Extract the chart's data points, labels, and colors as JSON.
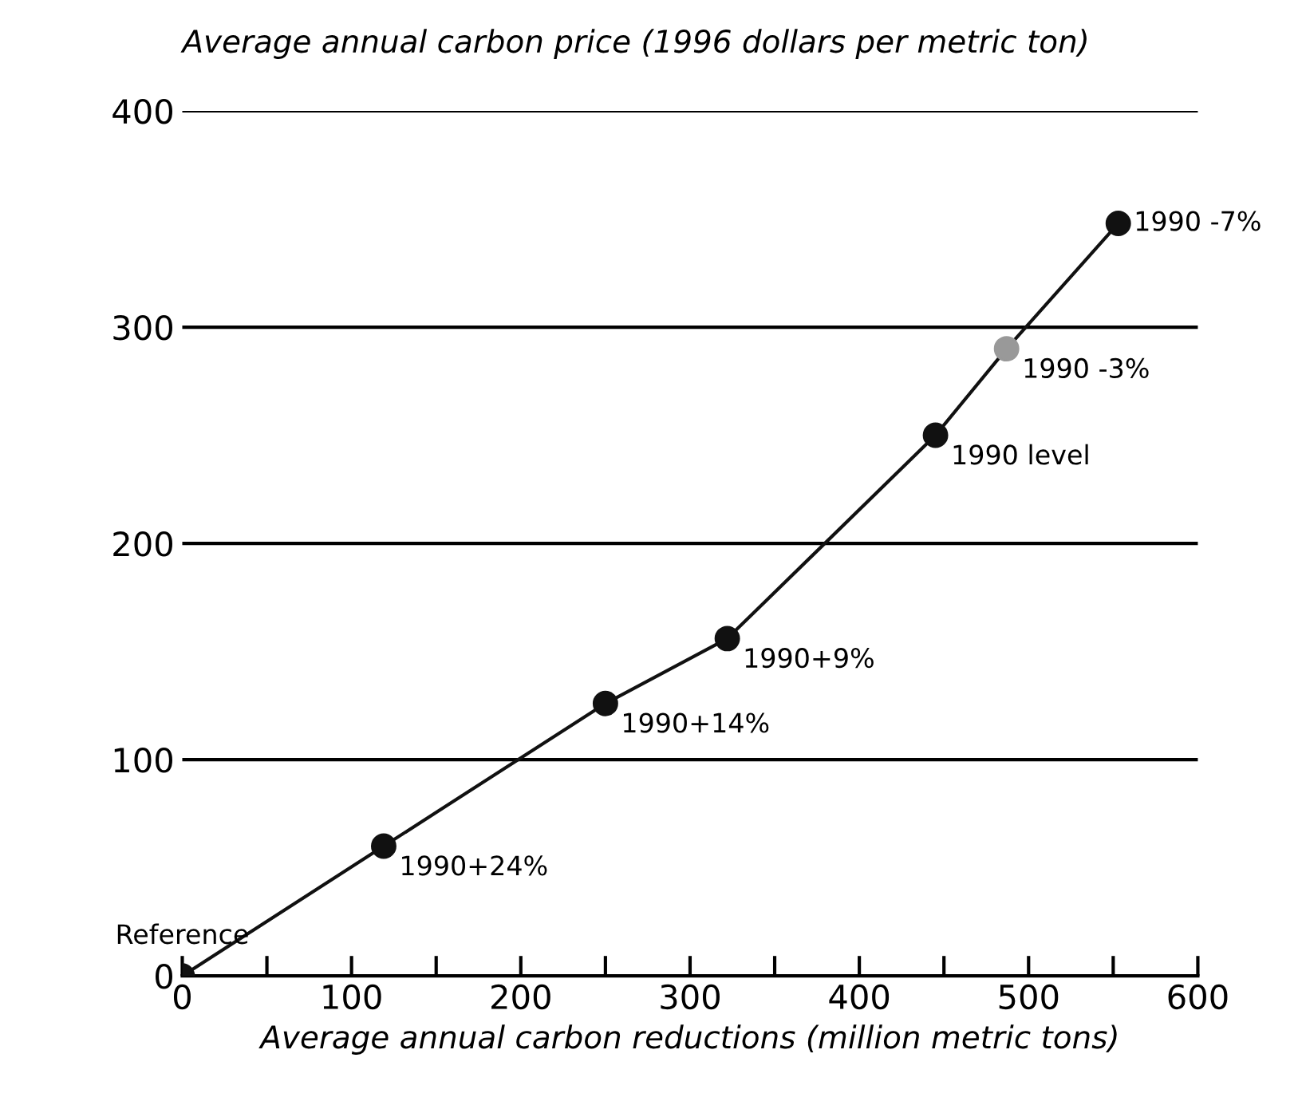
{
  "chart_data": {
    "type": "line",
    "ylabel": "Average annual carbon price (1996 dollars per metric ton)",
    "xlabel": "Average annual carbon reductions (million metric tons)",
    "x": [
      0,
      119,
      250,
      322,
      445,
      487,
      553
    ],
    "series": [
      {
        "color": "#111111",
        "values": [
          0,
          60,
          126,
          156,
          250,
          290,
          348
        ],
        "colors": [
          "#111111",
          "#111111",
          "#111111",
          "#111111",
          "#111111",
          "#999999",
          "#111111"
        ]
      }
    ],
    "marker": "circle",
    "line_style": "solid",
    "grid": "y",
    "legend": false,
    "xlim": [
      0,
      600
    ],
    "ylim": [
      0,
      400
    ],
    "xticks": [
      0,
      {
        "value": 50,
        "label": null
      },
      100,
      {
        "value": 150,
        "label": null
      },
      200,
      {
        "value": 250,
        "label": null
      },
      300,
      {
        "value": 350,
        "label": null
      },
      400,
      {
        "value": 450,
        "label": null
      },
      500,
      {
        "value": 550,
        "label": null
      },
      600
    ],
    "yticks": [
      0,
      100,
      200,
      300,
      400
    ],
    "annotations": [
      {
        "text": "Reference",
        "x": 0,
        "y": 0
      },
      {
        "text": "1990+24%",
        "x": 119,
        "y": 60
      },
      {
        "text": "1990+14%",
        "x": 250,
        "y": 126
      },
      {
        "text": "1990+9%",
        "x": 322,
        "y": 156
      },
      {
        "text": "1990 level",
        "x": 445,
        "y": 250
      },
      {
        "text": "1990 -3%",
        "x": 487,
        "y": 290
      },
      {
        "text": "1990 -7%",
        "x": 553,
        "y": 348
      }
    ]
  }
}
